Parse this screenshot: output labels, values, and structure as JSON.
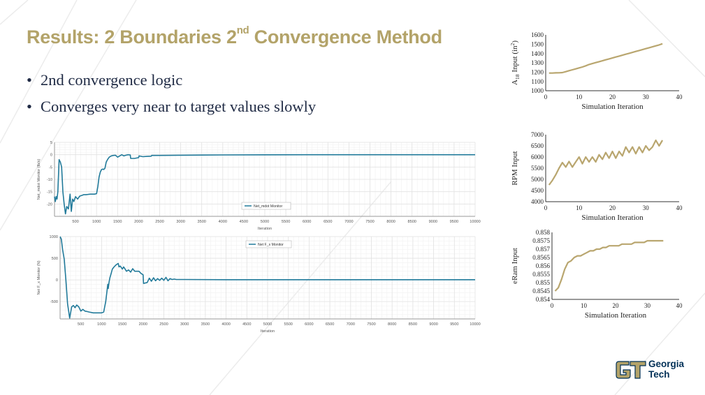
{
  "slide": {
    "title_main": "Results: 2 Boundaries 2",
    "title_sup": "nd",
    "title_rest": " Convergence Method",
    "bullets": [
      "2nd convergence logic",
      "Converges very near to target values slowly"
    ],
    "logo": {
      "line1": "Georgia",
      "line2": "Tech"
    }
  },
  "colors": {
    "title": "#B3A369",
    "star_line": "#217A9A",
    "gt_line": "#B9A66F",
    "text": "#1f2a44",
    "logo_navy": "#003057",
    "logo_gold": "#B3A369"
  },
  "chart_data": [
    {
      "type": "line",
      "xlabel": "Iteration",
      "ylabel": "Net_mdot Monitor (lb/s)",
      "xlim": [
        0,
        10000
      ],
      "ylim": [
        -25,
        5
      ],
      "xticks": [
        500,
        1000,
        1500,
        2000,
        2500,
        3000,
        3500,
        4000,
        4500,
        5000,
        5500,
        6000,
        6500,
        7000,
        7500,
        8000,
        8500,
        9000,
        9500,
        10000
      ],
      "yticks": [
        -20,
        -15,
        -10,
        -5,
        0,
        5
      ],
      "grid": true,
      "legend": "center-bottom",
      "series": [
        {
          "name": "Net_mdot Monitor",
          "x": [
            0,
            20,
            40,
            60,
            80,
            110,
            140,
            170,
            200,
            230,
            260,
            290,
            330,
            370,
            400,
            430,
            460,
            500,
            550,
            600,
            650,
            700,
            750,
            800,
            850,
            900,
            950,
            1000,
            1030,
            1060,
            1090,
            1120,
            1150,
            1170,
            1200,
            1230,
            1260,
            1300,
            1350,
            1400,
            1450,
            1500,
            1550,
            1600,
            1650,
            1700,
            1750,
            1800,
            1810,
            1900,
            2000,
            2010,
            2100,
            2200,
            2300,
            2310,
            2500,
            2750,
            3000,
            3500,
            4000,
            5000,
            6000,
            7000,
            8000,
            9000,
            10000
          ],
          "y": [
            -17,
            -19,
            -17,
            -18,
            -15,
            -2,
            -3,
            -5,
            -15,
            -20,
            -24,
            -21,
            -22,
            -16,
            -23,
            -18,
            -19,
            -17,
            -18,
            -16.8,
            -16.5,
            -16.2,
            -16.2,
            -16.1,
            -16,
            -16,
            -16,
            -15.8,
            -13,
            -9,
            -7,
            -6,
            -5.8,
            -6,
            -5.5,
            -3,
            -2,
            -1,
            -0.5,
            -0.3,
            -0.2,
            -1,
            -0.5,
            0,
            -0.5,
            -0.2,
            0,
            -0.1,
            -1.5,
            -1.5,
            -1.2,
            -0.5,
            -0.8,
            -0.7,
            -0.6,
            -0.3,
            -0.3,
            -0.25,
            -0.2,
            -0.15,
            -0.1,
            -0.05,
            0,
            0,
            0,
            0,
            0
          ]
        }
      ]
    },
    {
      "type": "line",
      "xlabel": "Iteration",
      "ylabel": "Net F_x Monitor (N)",
      "xlim": [
        0,
        10000
      ],
      "ylim": [
        -900,
        1000
      ],
      "xticks": [
        500,
        1000,
        1500,
        2000,
        2500,
        3000,
        3500,
        4000,
        4500,
        5000,
        5500,
        6000,
        6500,
        7000,
        7500,
        8000,
        8500,
        9000,
        9500,
        10000
      ],
      "yticks": [
        -500,
        0,
        500,
        1000
      ],
      "grid": true,
      "legend": "top-center",
      "series": [
        {
          "name": "Net F_x Monitor",
          "x": [
            0,
            30,
            60,
            100,
            140,
            180,
            230,
            280,
            320,
            360,
            400,
            450,
            500,
            550,
            600,
            650,
            700,
            800,
            900,
            1000,
            1050,
            1100,
            1150,
            1160,
            1180,
            1200,
            1230,
            1260,
            1300,
            1350,
            1400,
            1420,
            1450,
            1500,
            1530,
            1560,
            1600,
            1650,
            1700,
            1750,
            1800,
            1900,
            1950,
            2000,
            2010,
            2100,
            2150,
            2200,
            2250,
            2300,
            2350,
            2400,
            2450,
            2500,
            2550,
            2600,
            2650,
            2700,
            2750,
            2800,
            3000,
            4000,
            5000,
            6000,
            7000,
            8000,
            9000,
            10000
          ],
          "y": [
            1000,
            940,
            700,
            480,
            0,
            -550,
            -880,
            -620,
            -590,
            -640,
            -580,
            -620,
            -720,
            -680,
            -720,
            -730,
            -740,
            -760,
            -760,
            -760,
            -740,
            -500,
            -100,
            -200,
            -50,
            50,
            150,
            250,
            300,
            350,
            380,
            300,
            320,
            250,
            300,
            260,
            200,
            230,
            180,
            260,
            200,
            200,
            150,
            120,
            -80,
            -60,
            40,
            -30,
            50,
            -20,
            30,
            -10,
            40,
            -10,
            60,
            -20,
            30,
            10,
            20,
            10,
            10,
            5,
            5,
            5,
            5,
            5,
            5,
            5
          ]
        }
      ]
    },
    {
      "type": "line",
      "xlabel": "Simulation Iteration",
      "ylabel": "A18 Input (in2)",
      "ylabel_main": "A",
      "ylabel_sub": "18",
      "ylabel_mid": " Input (in",
      "ylabel_sup": "2",
      "ylabel_end": ")",
      "xlim": [
        0,
        40
      ],
      "ylim": [
        1000,
        1600
      ],
      "xticks": [
        0,
        10,
        20,
        30,
        40
      ],
      "yticks": [
        1000,
        1100,
        1200,
        1300,
        1400,
        1500,
        1600
      ],
      "grid": false,
      "series": [
        {
          "x": [
            1,
            2,
            3,
            4,
            5,
            6,
            7,
            8,
            9,
            10,
            11,
            12,
            13,
            14,
            15,
            16,
            17,
            18,
            19,
            20,
            21,
            22,
            23,
            24,
            25,
            26,
            27,
            28,
            29,
            30,
            31,
            32,
            33,
            34,
            35
          ],
          "y": [
            1190,
            1190,
            1192,
            1193,
            1195,
            1205,
            1215,
            1225,
            1235,
            1245,
            1255,
            1268,
            1282,
            1292,
            1302,
            1312,
            1322,
            1332,
            1342,
            1352,
            1362,
            1372,
            1382,
            1392,
            1402,
            1412,
            1422,
            1432,
            1442,
            1452,
            1462,
            1472,
            1482,
            1492,
            1505
          ]
        }
      ]
    },
    {
      "type": "line",
      "xlabel": "Simulation Iteration",
      "ylabel": "RPM Input",
      "xlim": [
        0,
        40
      ],
      "ylim": [
        4000,
        7000
      ],
      "xticks": [
        0,
        10,
        20,
        30,
        40
      ],
      "yticks": [
        4000,
        4500,
        5000,
        5500,
        6000,
        6500,
        7000
      ],
      "grid": false,
      "series": [
        {
          "x": [
            1,
            2,
            3,
            4,
            5,
            6,
            7,
            8,
            9,
            10,
            11,
            12,
            13,
            14,
            15,
            16,
            17,
            18,
            19,
            20,
            21,
            22,
            23,
            24,
            25,
            26,
            27,
            28,
            29,
            30,
            31,
            32,
            33,
            34,
            35
          ],
          "y": [
            4750,
            4950,
            5200,
            5500,
            5750,
            5550,
            5800,
            5550,
            5780,
            6000,
            5700,
            6000,
            5780,
            6000,
            5780,
            6100,
            5900,
            6200,
            5950,
            6250,
            5950,
            6250,
            6050,
            6450,
            6200,
            6450,
            6150,
            6450,
            6200,
            6500,
            6300,
            6450,
            6750,
            6500,
            6750
          ]
        }
      ]
    },
    {
      "type": "line",
      "xlabel": "Simulation Iteration",
      "ylabel": "eRam Input",
      "xlim": [
        0,
        40
      ],
      "ylim": [
        0.854,
        0.858
      ],
      "xticks": [
        0,
        10,
        20,
        30,
        40
      ],
      "yticks": [
        0.854,
        0.8545,
        0.855,
        0.8555,
        0.856,
        0.8565,
        0.857,
        0.8575,
        0.858
      ],
      "grid": false,
      "series": [
        {
          "x": [
            1,
            2,
            3,
            4,
            5,
            6,
            7,
            8,
            9,
            10,
            11,
            12,
            13,
            14,
            15,
            16,
            17,
            18,
            19,
            20,
            21,
            22,
            23,
            24,
            25,
            26,
            27,
            28,
            29,
            30,
            31,
            32,
            33,
            34,
            35
          ],
          "y": [
            0.8545,
            0.8547,
            0.8552,
            0.8558,
            0.8562,
            0.8563,
            0.8565,
            0.8566,
            0.8566,
            0.8567,
            0.8568,
            0.8569,
            0.8569,
            0.857,
            0.857,
            0.8571,
            0.8571,
            0.8572,
            0.8572,
            0.8572,
            0.8572,
            0.8573,
            0.8573,
            0.8573,
            0.8573,
            0.8574,
            0.8574,
            0.8574,
            0.8574,
            0.8575,
            0.8575,
            0.8575,
            0.8575,
            0.8575,
            0.8575
          ]
        }
      ]
    }
  ]
}
